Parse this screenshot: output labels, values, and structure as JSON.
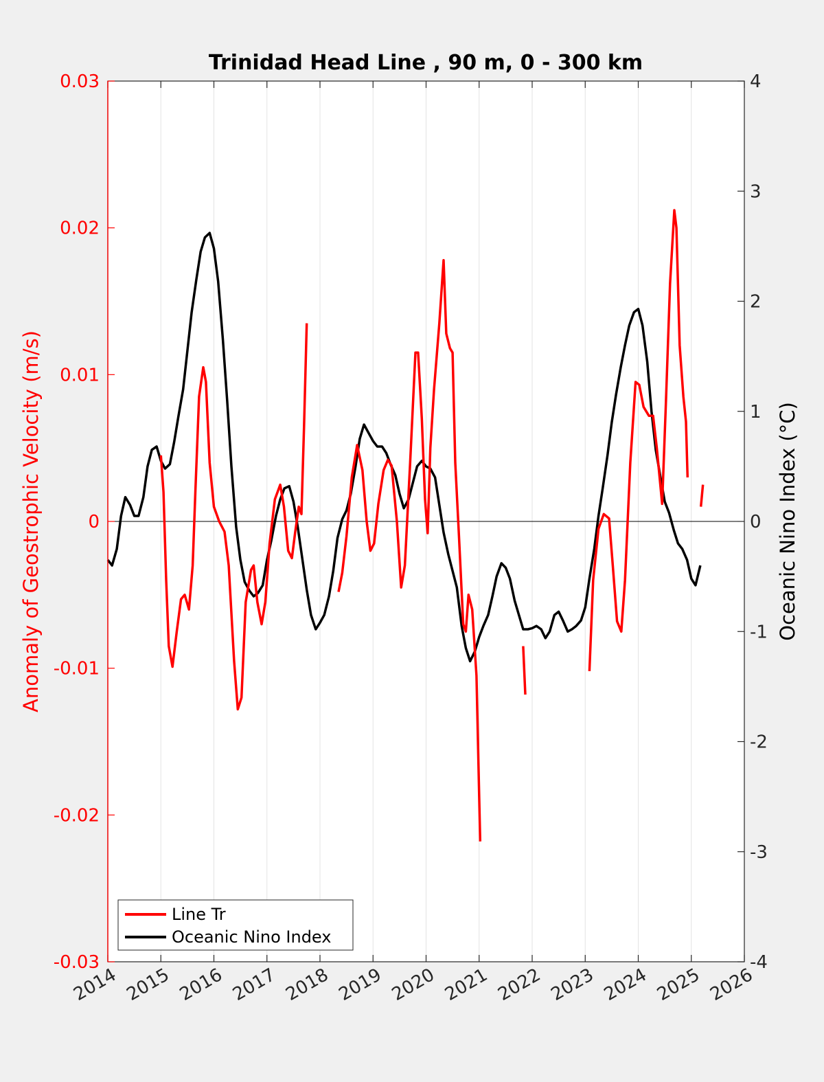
{
  "chart_data": {
    "type": "line",
    "title": "Trinidad Head Line , 90 m, 0 - 300 km",
    "ylabel_left": "Anomaly of Geostrophic Velocity (m/s)",
    "ylabel_right": "Oceanic Nino Index (°C)",
    "xlim": [
      2014,
      2026
    ],
    "ylim_left": [
      -0.03,
      0.03
    ],
    "ylim_right": [
      -4,
      4
    ],
    "x_ticks": [
      "2014",
      "2015",
      "2016",
      "2017",
      "2018",
      "2019",
      "2020",
      "2021",
      "2022",
      "2023",
      "2024",
      "2025",
      "2026"
    ],
    "y_left_ticks": [
      "-0.03",
      "-0.02",
      "-0.01",
      "0",
      "0.01",
      "0.02",
      "0.03"
    ],
    "y_right_ticks": [
      "-4",
      "-3",
      "-2",
      "-1",
      "0",
      "1",
      "2",
      "3",
      "4"
    ],
    "grid": "vertical",
    "legend_position": "bottom-left",
    "colors": {
      "line_tr": "#ff0000",
      "oni": "#000000"
    },
    "series": [
      {
        "name": "Line Tr",
        "axis": "left",
        "segments": [
          [
            [
              2015.0,
              0.0045
            ],
            [
              2015.05,
              0.002
            ],
            [
              2015.1,
              -0.004
            ],
            [
              2015.15,
              -0.0085
            ],
            [
              2015.22,
              -0.0099
            ],
            [
              2015.3,
              -0.0075
            ],
            [
              2015.38,
              -0.0053
            ],
            [
              2015.45,
              -0.005
            ],
            [
              2015.53,
              -0.006
            ],
            [
              2015.6,
              -0.003
            ],
            [
              2015.65,
              0.002
            ],
            [
              2015.72,
              0.0085
            ],
            [
              2015.8,
              0.0105
            ],
            [
              2015.85,
              0.0095
            ],
            [
              2015.92,
              0.004
            ],
            [
              2016.0,
              0.001
            ],
            [
              2016.1,
              0.0
            ],
            [
              2016.2,
              -0.0007
            ],
            [
              2016.28,
              -0.003
            ],
            [
              2016.38,
              -0.0095
            ],
            [
              2016.45,
              -0.0128
            ],
            [
              2016.52,
              -0.012
            ],
            [
              2016.6,
              -0.0055
            ],
            [
              2016.7,
              -0.0033
            ],
            [
              2016.75,
              -0.003
            ],
            [
              2016.82,
              -0.0055
            ],
            [
              2016.9,
              -0.007
            ],
            [
              2016.97,
              -0.0055
            ],
            [
              2017.05,
              -0.0015
            ],
            [
              2017.15,
              0.0015
            ],
            [
              2017.25,
              0.0025
            ],
            [
              2017.32,
              0.001
            ],
            [
              2017.4,
              -0.002
            ],
            [
              2017.47,
              -0.0025
            ],
            [
              2017.53,
              -0.0008
            ],
            [
              2017.6,
              0.001
            ],
            [
              2017.65,
              0.0005
            ],
            [
              2017.7,
              0.0065
            ],
            [
              2017.75,
              0.0135
            ]
          ],
          [
            [
              2018.35,
              -0.0048
            ],
            [
              2018.42,
              -0.0035
            ],
            [
              2018.5,
              -0.001
            ],
            [
              2018.6,
              0.003
            ],
            [
              2018.7,
              0.0052
            ],
            [
              2018.8,
              0.0035
            ],
            [
              2018.88,
              0.0
            ],
            [
              2018.95,
              -0.002
            ],
            [
              2019.02,
              -0.0015
            ],
            [
              2019.1,
              0.0012
            ],
            [
              2019.2,
              0.0035
            ],
            [
              2019.28,
              0.0042
            ],
            [
              2019.35,
              0.0038
            ],
            [
              2019.45,
              0.0
            ],
            [
              2019.53,
              -0.0045
            ],
            [
              2019.6,
              -0.003
            ],
            [
              2019.7,
              0.004
            ],
            [
              2019.8,
              0.0115
            ],
            [
              2019.85,
              0.0115
            ],
            [
              2019.92,
              0.007
            ],
            [
              2019.98,
              0.0015
            ],
            [
              2020.03,
              -0.0008
            ],
            [
              2020.08,
              0.005
            ],
            [
              2020.15,
              0.009
            ],
            [
              2020.25,
              0.0135
            ],
            [
              2020.33,
              0.0178
            ],
            [
              2020.38,
              0.0128
            ],
            [
              2020.45,
              0.0118
            ],
            [
              2020.5,
              0.0115
            ],
            [
              2020.55,
              0.004
            ],
            [
              2020.62,
              -0.001
            ],
            [
              2020.7,
              -0.007
            ],
            [
              2020.75,
              -0.0075
            ],
            [
              2020.8,
              -0.005
            ],
            [
              2020.87,
              -0.006
            ],
            [
              2020.95,
              -0.0105
            ],
            [
              2021.02,
              -0.0218
            ]
          ],
          [
            [
              2021.83,
              -0.0085
            ],
            [
              2021.87,
              -0.0118
            ]
          ],
          [
            [
              2023.08,
              -0.0102
            ],
            [
              2023.15,
              -0.004
            ],
            [
              2023.25,
              -0.0005
            ],
            [
              2023.35,
              0.0005
            ],
            [
              2023.45,
              0.0002
            ],
            [
              2023.52,
              -0.003
            ],
            [
              2023.6,
              -0.0068
            ],
            [
              2023.68,
              -0.0075
            ],
            [
              2023.75,
              -0.004
            ],
            [
              2023.85,
              0.004
            ],
            [
              2023.95,
              0.0095
            ],
            [
              2024.02,
              0.0093
            ],
            [
              2024.1,
              0.0078
            ],
            [
              2024.2,
              0.0072
            ],
            [
              2024.28,
              0.0072
            ],
            [
              2024.35,
              0.005
            ],
            [
              2024.45,
              0.0012
            ],
            [
              2024.52,
              0.008
            ],
            [
              2024.6,
              0.0162
            ],
            [
              2024.68,
              0.0212
            ],
            [
              2024.72,
              0.02
            ],
            [
              2024.78,
              0.012
            ],
            [
              2024.85,
              0.0085
            ],
            [
              2024.9,
              0.0068
            ],
            [
              2024.93,
              0.003
            ]
          ],
          [
            [
              2025.18,
              0.001
            ],
            [
              2025.22,
              0.0025
            ]
          ]
        ]
      },
      {
        "name": "Oceanic Nino Index",
        "axis": "right",
        "segments": [
          [
            [
              2014.0,
              -0.35
            ],
            [
              2014.08,
              -0.4
            ],
            [
              2014.17,
              -0.25
            ],
            [
              2014.25,
              0.05
            ],
            [
              2014.33,
              0.22
            ],
            [
              2014.42,
              0.15
            ],
            [
              2014.5,
              0.05
            ],
            [
              2014.58,
              0.05
            ],
            [
              2014.67,
              0.22
            ],
            [
              2014.75,
              0.5
            ],
            [
              2014.83,
              0.65
            ],
            [
              2014.92,
              0.68
            ],
            [
              2015.0,
              0.55
            ],
            [
              2015.08,
              0.48
            ],
            [
              2015.17,
              0.52
            ],
            [
              2015.25,
              0.72
            ],
            [
              2015.33,
              0.95
            ],
            [
              2015.42,
              1.2
            ],
            [
              2015.5,
              1.55
            ],
            [
              2015.58,
              1.9
            ],
            [
              2015.67,
              2.2
            ],
            [
              2015.75,
              2.45
            ],
            [
              2015.83,
              2.58
            ],
            [
              2015.92,
              2.62
            ],
            [
              2016.0,
              2.48
            ],
            [
              2016.08,
              2.18
            ],
            [
              2016.17,
              1.65
            ],
            [
              2016.25,
              1.1
            ],
            [
              2016.33,
              0.5
            ],
            [
              2016.42,
              -0.05
            ],
            [
              2016.5,
              -0.35
            ],
            [
              2016.58,
              -0.55
            ],
            [
              2016.67,
              -0.63
            ],
            [
              2016.75,
              -0.68
            ],
            [
              2016.83,
              -0.65
            ],
            [
              2016.92,
              -0.58
            ],
            [
              2017.0,
              -0.35
            ],
            [
              2017.08,
              -0.18
            ],
            [
              2017.17,
              0.05
            ],
            [
              2017.25,
              0.2
            ],
            [
              2017.33,
              0.3
            ],
            [
              2017.42,
              0.32
            ],
            [
              2017.5,
              0.18
            ],
            [
              2017.58,
              -0.05
            ],
            [
              2017.67,
              -0.35
            ],
            [
              2017.75,
              -0.62
            ],
            [
              2017.83,
              -0.85
            ],
            [
              2017.92,
              -0.98
            ],
            [
              2018.0,
              -0.92
            ],
            [
              2018.08,
              -0.85
            ],
            [
              2018.17,
              -0.68
            ],
            [
              2018.25,
              -0.45
            ],
            [
              2018.33,
              -0.15
            ],
            [
              2018.42,
              0.02
            ],
            [
              2018.5,
              0.1
            ],
            [
              2018.58,
              0.25
            ],
            [
              2018.67,
              0.5
            ],
            [
              2018.75,
              0.75
            ],
            [
              2018.83,
              0.88
            ],
            [
              2018.92,
              0.8
            ],
            [
              2019.0,
              0.73
            ],
            [
              2019.08,
              0.68
            ],
            [
              2019.17,
              0.68
            ],
            [
              2019.25,
              0.62
            ],
            [
              2019.33,
              0.52
            ],
            [
              2019.42,
              0.42
            ],
            [
              2019.5,
              0.25
            ],
            [
              2019.58,
              0.12
            ],
            [
              2019.67,
              0.2
            ],
            [
              2019.75,
              0.35
            ],
            [
              2019.83,
              0.5
            ],
            [
              2019.92,
              0.55
            ],
            [
              2020.0,
              0.5
            ],
            [
              2020.08,
              0.48
            ],
            [
              2020.17,
              0.4
            ],
            [
              2020.25,
              0.15
            ],
            [
              2020.33,
              -0.1
            ],
            [
              2020.42,
              -0.3
            ],
            [
              2020.5,
              -0.45
            ],
            [
              2020.58,
              -0.6
            ],
            [
              2020.67,
              -0.95
            ],
            [
              2020.75,
              -1.15
            ],
            [
              2020.83,
              -1.27
            ],
            [
              2020.92,
              -1.18
            ],
            [
              2021.0,
              -1.05
            ],
            [
              2021.08,
              -0.95
            ],
            [
              2021.17,
              -0.85
            ],
            [
              2021.25,
              -0.68
            ],
            [
              2021.33,
              -0.5
            ],
            [
              2021.42,
              -0.38
            ],
            [
              2021.5,
              -0.42
            ],
            [
              2021.58,
              -0.52
            ],
            [
              2021.67,
              -0.72
            ],
            [
              2021.75,
              -0.85
            ],
            [
              2021.83,
              -0.98
            ],
            [
              2021.92,
              -0.98
            ],
            [
              2022.0,
              -0.97
            ],
            [
              2022.08,
              -0.95
            ],
            [
              2022.17,
              -0.98
            ],
            [
              2022.25,
              -1.06
            ],
            [
              2022.33,
              -1.0
            ],
            [
              2022.42,
              -0.85
            ],
            [
              2022.5,
              -0.82
            ],
            [
              2022.58,
              -0.9
            ],
            [
              2022.67,
              -1.0
            ],
            [
              2022.75,
              -0.98
            ],
            [
              2022.83,
              -0.95
            ],
            [
              2022.92,
              -0.9
            ],
            [
              2023.0,
              -0.78
            ],
            [
              2023.08,
              -0.52
            ],
            [
              2023.17,
              -0.25
            ],
            [
              2023.25,
              0.05
            ],
            [
              2023.33,
              0.3
            ],
            [
              2023.42,
              0.6
            ],
            [
              2023.5,
              0.9
            ],
            [
              2023.58,
              1.15
            ],
            [
              2023.67,
              1.4
            ],
            [
              2023.75,
              1.6
            ],
            [
              2023.83,
              1.78
            ],
            [
              2023.92,
              1.9
            ],
            [
              2024.0,
              1.93
            ],
            [
              2024.08,
              1.78
            ],
            [
              2024.17,
              1.45
            ],
            [
              2024.25,
              1.0
            ],
            [
              2024.33,
              0.65
            ],
            [
              2024.42,
              0.4
            ],
            [
              2024.5,
              0.18
            ],
            [
              2024.58,
              0.08
            ],
            [
              2024.67,
              -0.08
            ],
            [
              2024.75,
              -0.2
            ],
            [
              2024.83,
              -0.25
            ],
            [
              2024.92,
              -0.35
            ],
            [
              2025.0,
              -0.52
            ],
            [
              2025.08,
              -0.58
            ],
            [
              2025.17,
              -0.4
            ]
          ]
        ]
      }
    ]
  },
  "legend": {
    "items": [
      {
        "label": "Line Tr"
      },
      {
        "label": "Oceanic Nino Index"
      }
    ]
  }
}
